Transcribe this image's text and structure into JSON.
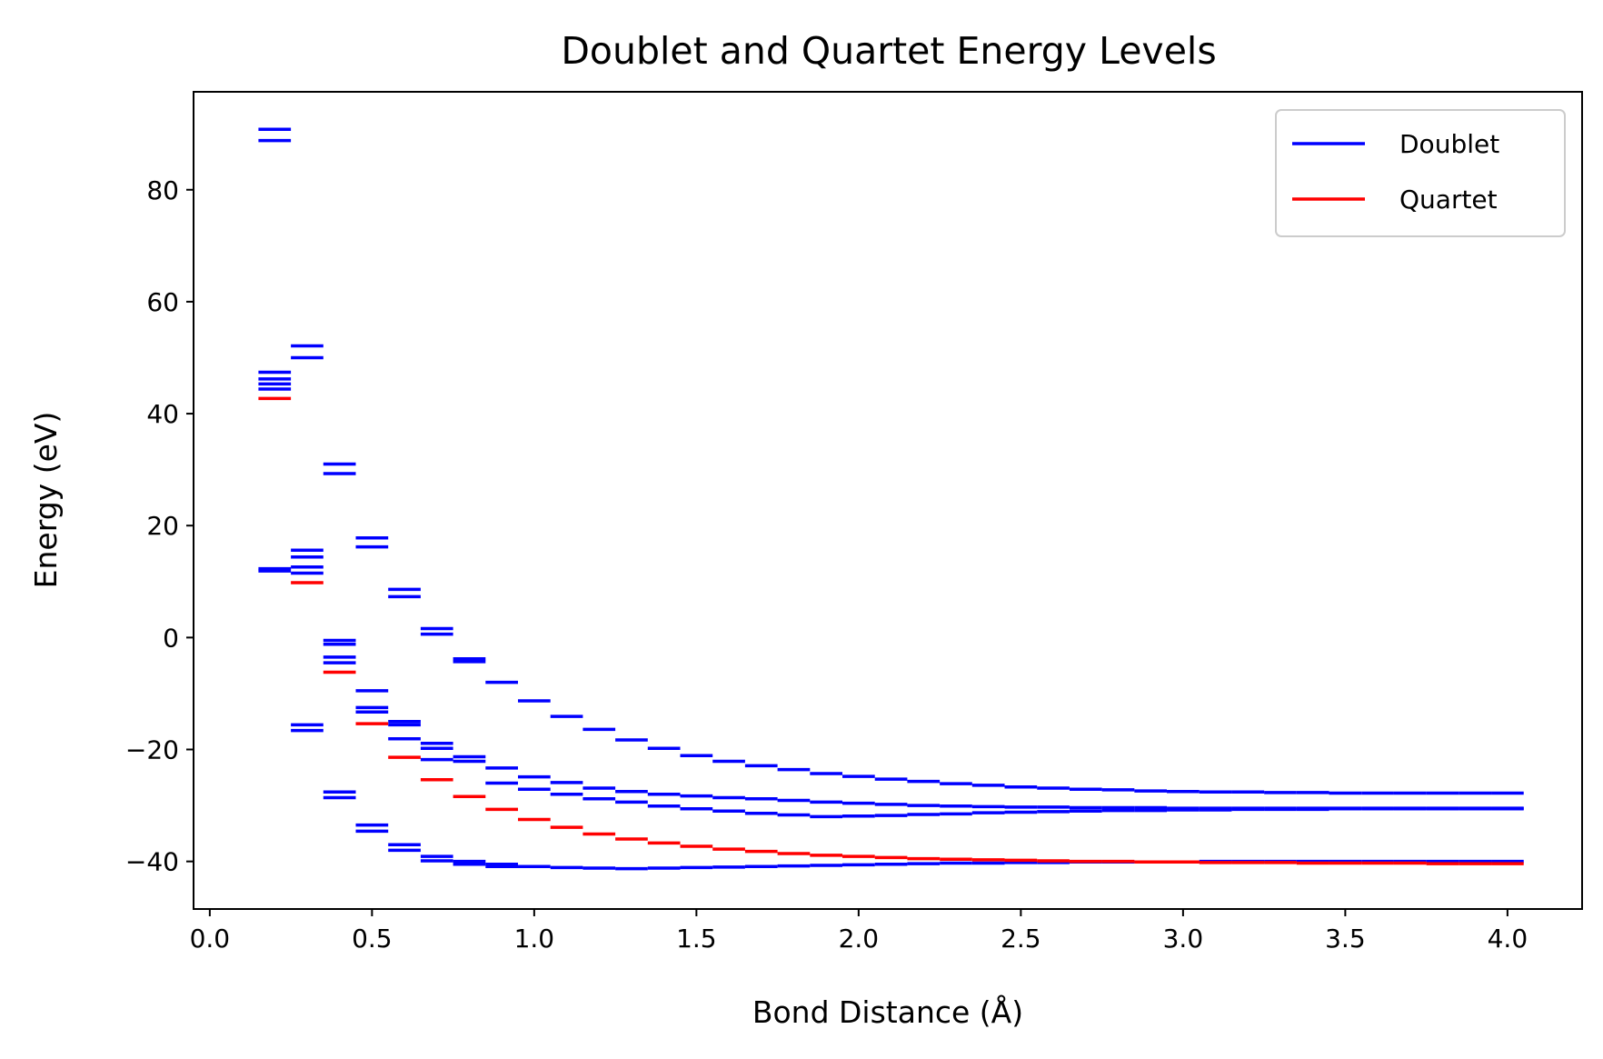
{
  "chart_data": {
    "type": "line",
    "title": "Doublet and Quartet Energy Levels",
    "xlabel": "Bond Distance (Å)",
    "ylabel": "Energy (eV)",
    "xlim": [
      -0.05,
      4.23
    ],
    "ylim": [
      -48.5,
      97.5
    ],
    "xticks": [
      0.0,
      0.5,
      1.0,
      1.5,
      2.0,
      2.5,
      3.0,
      3.5,
      4.0
    ],
    "xtick_labels": [
      "0.0",
      "0.5",
      "1.0",
      "1.5",
      "2.0",
      "2.5",
      "3.0",
      "3.5",
      "4.0"
    ],
    "yticks": [
      -40,
      -20,
      0,
      20,
      40,
      60,
      80
    ],
    "ytick_labels": [
      "−40",
      "−20",
      "0",
      "20",
      "40",
      "60",
      "80"
    ],
    "grid": false,
    "legend": "top-right",
    "level_width": 0.1,
    "series": [
      {
        "name": "Doublet",
        "color": "#0000ff",
        "x": [
          0.2,
          0.3,
          0.4,
          0.5,
          0.6,
          0.7,
          0.8,
          0.9,
          1.0,
          1.1,
          1.2,
          1.3,
          1.4,
          1.5,
          1.6,
          1.7,
          1.8,
          1.9,
          2.0,
          2.1,
          2.2,
          2.3,
          2.4,
          2.5,
          2.6,
          2.7,
          2.8,
          2.9,
          3.0,
          3.1,
          3.2,
          3.3,
          3.4,
          3.5,
          3.6,
          3.7,
          3.8,
          3.9,
          4.0
        ],
        "levels": [
          [
            88.8,
            90.8,
            46.2,
            47.4,
            44.4,
            45.3,
            11.9,
            12.3
          ],
          [
            50.0,
            52.1,
            14.4,
            15.6,
            11.5,
            12.6,
            -15.6,
            -16.6
          ],
          [
            29.3,
            31.0,
            -0.5,
            -1.2,
            -3.5,
            -4.5,
            -27.6,
            -28.6
          ],
          [
            16.2,
            17.8,
            -9.5,
            -12.5,
            -13.3,
            -33.5,
            -34.6
          ],
          [
            7.3,
            8.6,
            -15.0,
            -15.6,
            -18.1,
            -37.0,
            -38.0
          ],
          [
            0.6,
            1.6,
            -18.9,
            -19.8,
            -21.8,
            -39.1,
            -39.9
          ],
          [
            -3.8,
            -4.3,
            -21.3,
            -22.1,
            -40.0,
            -40.5
          ],
          [
            -8.0,
            -23.3,
            -26.0,
            -40.5,
            -40.9
          ],
          [
            -11.3,
            -24.9,
            -27.1,
            -40.9
          ],
          [
            -14.1,
            -25.9,
            -28.0,
            -41.1
          ],
          [
            -16.4,
            -26.9,
            -28.8,
            -41.2
          ],
          [
            -18.3,
            -27.5,
            -29.4,
            -41.3
          ],
          [
            -19.8,
            -28.0,
            -30.1,
            -41.2
          ],
          [
            -21.1,
            -28.3,
            -30.6,
            -41.1
          ],
          [
            -22.1,
            -28.6,
            -31.0,
            -41.0
          ],
          [
            -22.9,
            -28.8,
            -31.4,
            -40.9
          ],
          [
            -23.6,
            -29.1,
            -31.7,
            -40.8
          ],
          [
            -24.3,
            -29.4,
            -32.0,
            -40.7
          ],
          [
            -24.8,
            -29.6,
            -31.9,
            -40.6
          ],
          [
            -25.3,
            -29.8,
            -31.8,
            -40.5
          ],
          [
            -25.7,
            -30.0,
            -31.6,
            -40.4
          ],
          [
            -26.1,
            -30.1,
            -31.5,
            -40.3
          ],
          [
            -26.4,
            -30.2,
            -31.3,
            -40.3
          ],
          [
            -26.7,
            -30.3,
            -31.2,
            -40.2
          ],
          [
            -26.9,
            -30.3,
            -31.1,
            -40.2
          ],
          [
            -27.1,
            -30.4,
            -31.0,
            -40.1
          ],
          [
            -27.2,
            -30.4,
            -30.9,
            -40.1
          ],
          [
            -27.4,
            -30.4,
            -30.9,
            -40.1
          ],
          [
            -27.5,
            -30.5,
            -30.8,
            -40.1
          ],
          [
            -27.6,
            -30.5,
            -30.8,
            -40.0
          ],
          [
            -27.6,
            -30.5,
            -30.7,
            -40.0
          ],
          [
            -27.7,
            -30.5,
            -30.7,
            -40.0
          ],
          [
            -27.7,
            -30.5,
            -30.7,
            -40.0
          ],
          [
            -27.8,
            -30.5,
            -30.6,
            -40.0
          ],
          [
            -27.8,
            -30.5,
            -30.6,
            -40.0
          ],
          [
            -27.8,
            -30.5,
            -30.6,
            -40.0
          ],
          [
            -27.8,
            -30.5,
            -30.6,
            -40.0
          ],
          [
            -27.8,
            -30.5,
            -30.6,
            -40.0
          ],
          [
            -27.8,
            -30.5,
            -30.6,
            -40.0
          ]
        ]
      },
      {
        "name": "Quartet",
        "color": "#ff0000",
        "x": [
          0.2,
          0.3,
          0.4,
          0.5,
          0.6,
          0.7,
          0.8,
          0.9,
          1.0,
          1.1,
          1.2,
          1.3,
          1.4,
          1.5,
          1.6,
          1.7,
          1.8,
          1.9,
          2.0,
          2.1,
          2.2,
          2.3,
          2.4,
          2.5,
          2.6,
          2.7,
          2.8,
          2.9,
          3.0,
          3.1,
          3.2,
          3.3,
          3.4,
          3.5,
          3.6,
          3.7,
          3.8,
          3.9,
          4.0
        ],
        "values": [
          42.7,
          9.8,
          -6.2,
          -15.4,
          -21.4,
          -25.4,
          -28.4,
          -30.7,
          -32.5,
          -33.9,
          -35.1,
          -36.0,
          -36.7,
          -37.3,
          -37.8,
          -38.2,
          -38.6,
          -38.9,
          -39.1,
          -39.3,
          -39.5,
          -39.6,
          -39.7,
          -39.8,
          -39.9,
          -40.0,
          -40.0,
          -40.1,
          -40.1,
          -40.2,
          -40.2,
          -40.2,
          -40.3,
          -40.3,
          -40.3,
          -40.3,
          -40.4,
          -40.4,
          -40.4
        ]
      }
    ]
  }
}
